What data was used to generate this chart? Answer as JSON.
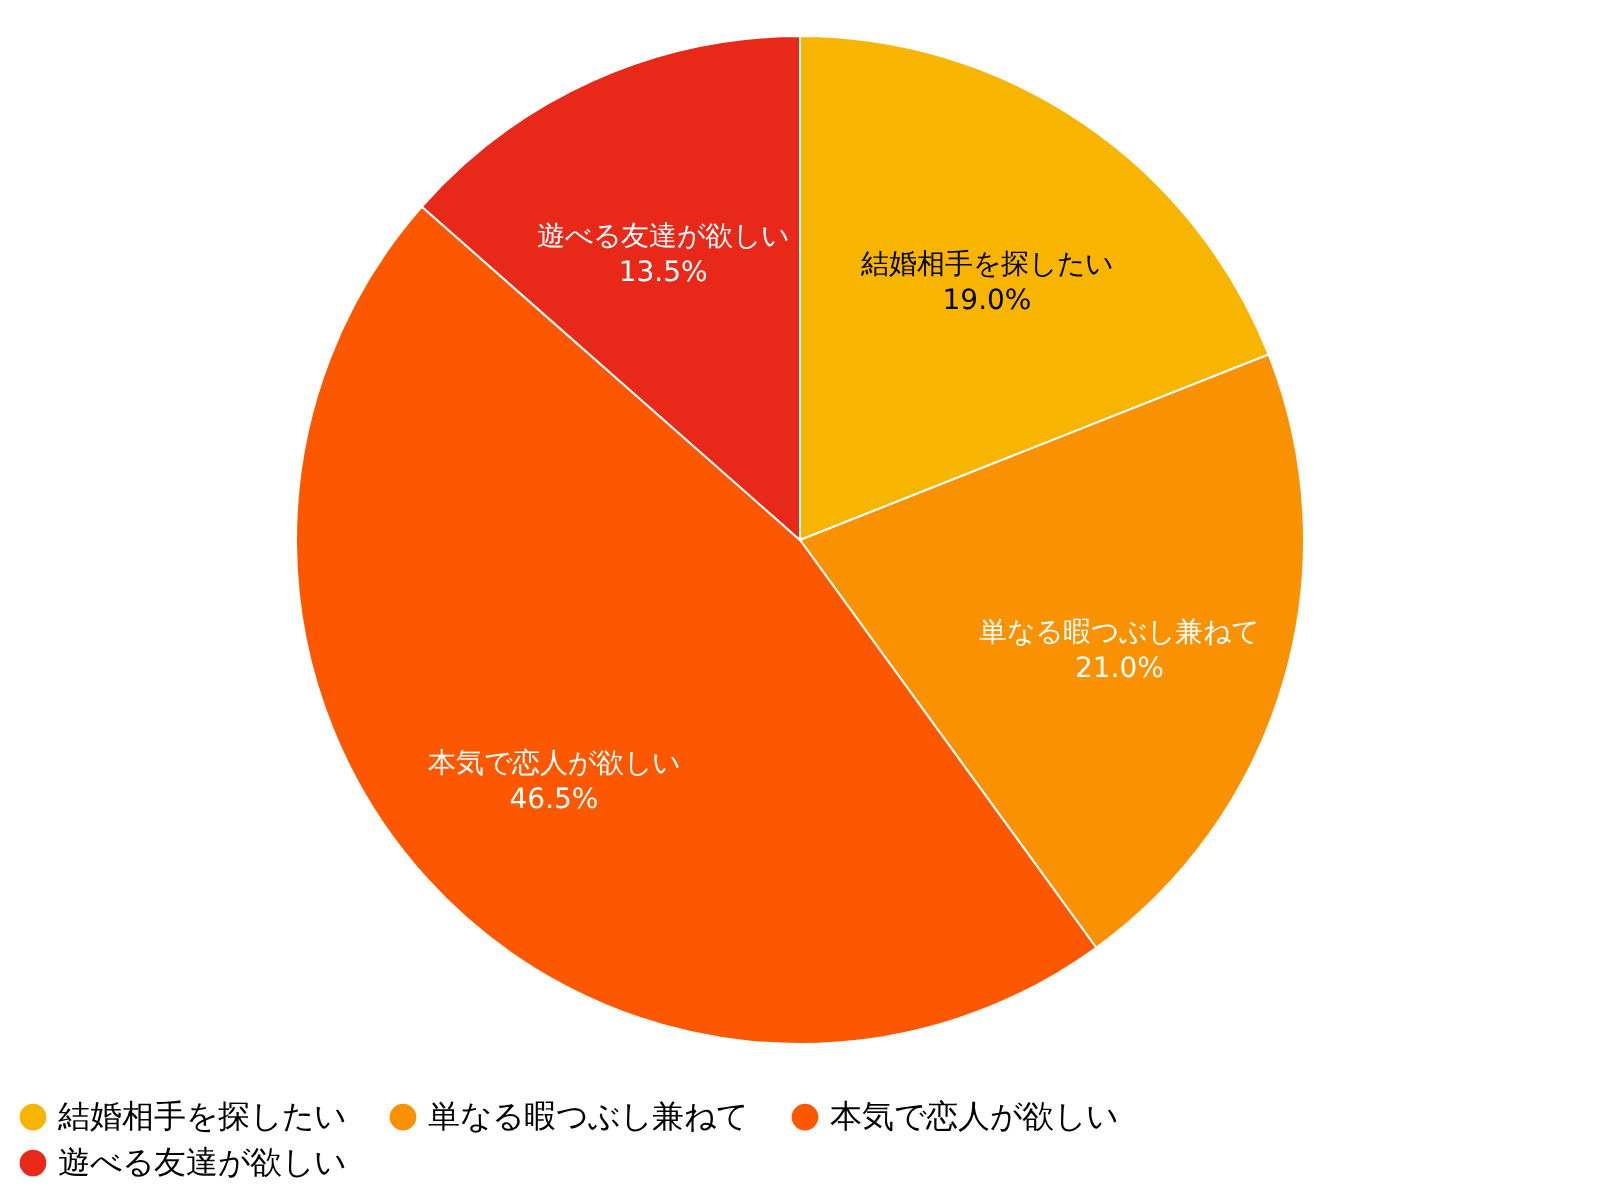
{
  "chart_data": {
    "type": "pie",
    "categories": [
      "結婚相手を探したい",
      "単なる暇つぶし兼ねて",
      "本気で恋人が欲しい",
      "遊べる友達が欲しい"
    ],
    "values": [
      19.0,
      21.0,
      46.5,
      13.5
    ],
    "value_labels": [
      "19.0%",
      "21.0%",
      "46.5%",
      "13.5%"
    ],
    "colors": [
      "#f7b500",
      "#fa9100",
      "#fd5800",
      "#e8291a"
    ],
    "legend": "bottom"
  }
}
